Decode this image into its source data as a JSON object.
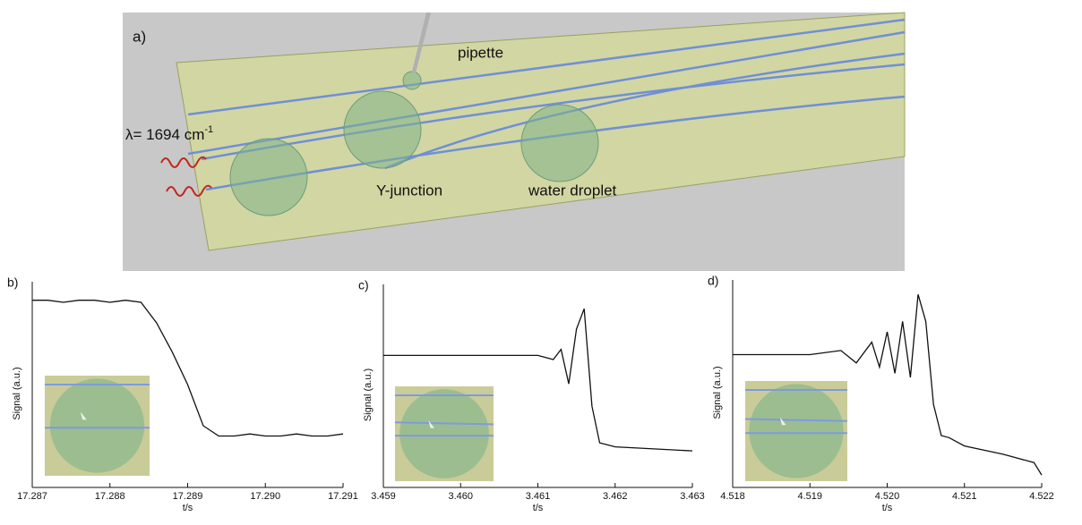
{
  "illustration": {
    "label": "a)",
    "pipette": "pipette",
    "wavelength": "λ= 1694 cm",
    "wavelength_sup": "-1",
    "junction": "Y-junction",
    "droplet": "water droplet"
  },
  "chart_data": [
    {
      "type": "line",
      "label": "b)",
      "xlabel": "t/s",
      "ylabel": "Signal (a.u.)",
      "color": "#111111",
      "x": [
        17.287,
        17.2872,
        17.2874,
        17.2876,
        17.2878,
        17.288,
        17.2882,
        17.2884,
        17.2886,
        17.2888,
        17.289,
        17.2892,
        17.2894,
        17.2896,
        17.2898,
        17.29,
        17.2902,
        17.2904,
        17.2906,
        17.2908,
        17.291
      ],
      "values": [
        0.91,
        0.91,
        0.9,
        0.91,
        0.91,
        0.9,
        0.91,
        0.9,
        0.8,
        0.66,
        0.5,
        0.3,
        0.25,
        0.25,
        0.26,
        0.25,
        0.25,
        0.26,
        0.25,
        0.25,
        0.26
      ],
      "xlim": [
        17.287,
        17.291
      ],
      "ylim": [
        0,
        1
      ],
      "xticks": [
        17.287,
        17.288,
        17.289,
        {
          "value": 17.29,
          "label": "17.290"
        },
        17.291
      ]
    },
    {
      "type": "line",
      "label": "c)",
      "xlabel": "t/s",
      "ylabel": "Signal (a.u.)",
      "color": "#111111",
      "x": [
        3.459,
        3.4595,
        3.46,
        3.4605,
        3.461,
        3.4612,
        3.4613,
        3.4614,
        3.4615,
        3.4616,
        3.4617,
        3.4618,
        3.462,
        3.4625,
        3.463
      ],
      "values": [
        0.65,
        0.65,
        0.65,
        0.65,
        0.65,
        0.63,
        0.68,
        0.51,
        0.78,
        0.88,
        0.4,
        0.22,
        0.2,
        0.19,
        0.18
      ],
      "xlim": [
        3.459,
        3.463
      ],
      "ylim": [
        0,
        1
      ],
      "xticks": [
        3.459,
        {
          "value": 3.46,
          "label": "3.460"
        },
        3.461,
        3.462,
        3.463
      ]
    },
    {
      "type": "line",
      "label": "d)",
      "xlabel": "t/s",
      "ylabel": "Signal (a.u.)",
      "color": "#111111",
      "x": [
        4.518,
        4.5185,
        4.519,
        4.5194,
        4.5196,
        4.5198,
        4.5199,
        4.52,
        4.5201,
        4.5202,
        4.5203,
        4.5204,
        4.5205,
        4.5206,
        4.5207,
        4.5208,
        4.521,
        4.5215,
        4.5219,
        4.522
      ],
      "values": [
        0.64,
        0.64,
        0.64,
        0.66,
        0.6,
        0.7,
        0.58,
        0.75,
        0.55,
        0.8,
        0.53,
        0.93,
        0.8,
        0.4,
        0.25,
        0.24,
        0.2,
        0.16,
        0.12,
        0.06
      ],
      "xlim": [
        4.518,
        4.522
      ],
      "ylim": [
        0,
        1
      ],
      "xticks": [
        4.518,
        4.519,
        {
          "value": 4.52,
          "label": "4.520"
        },
        4.521,
        4.522
      ]
    }
  ]
}
